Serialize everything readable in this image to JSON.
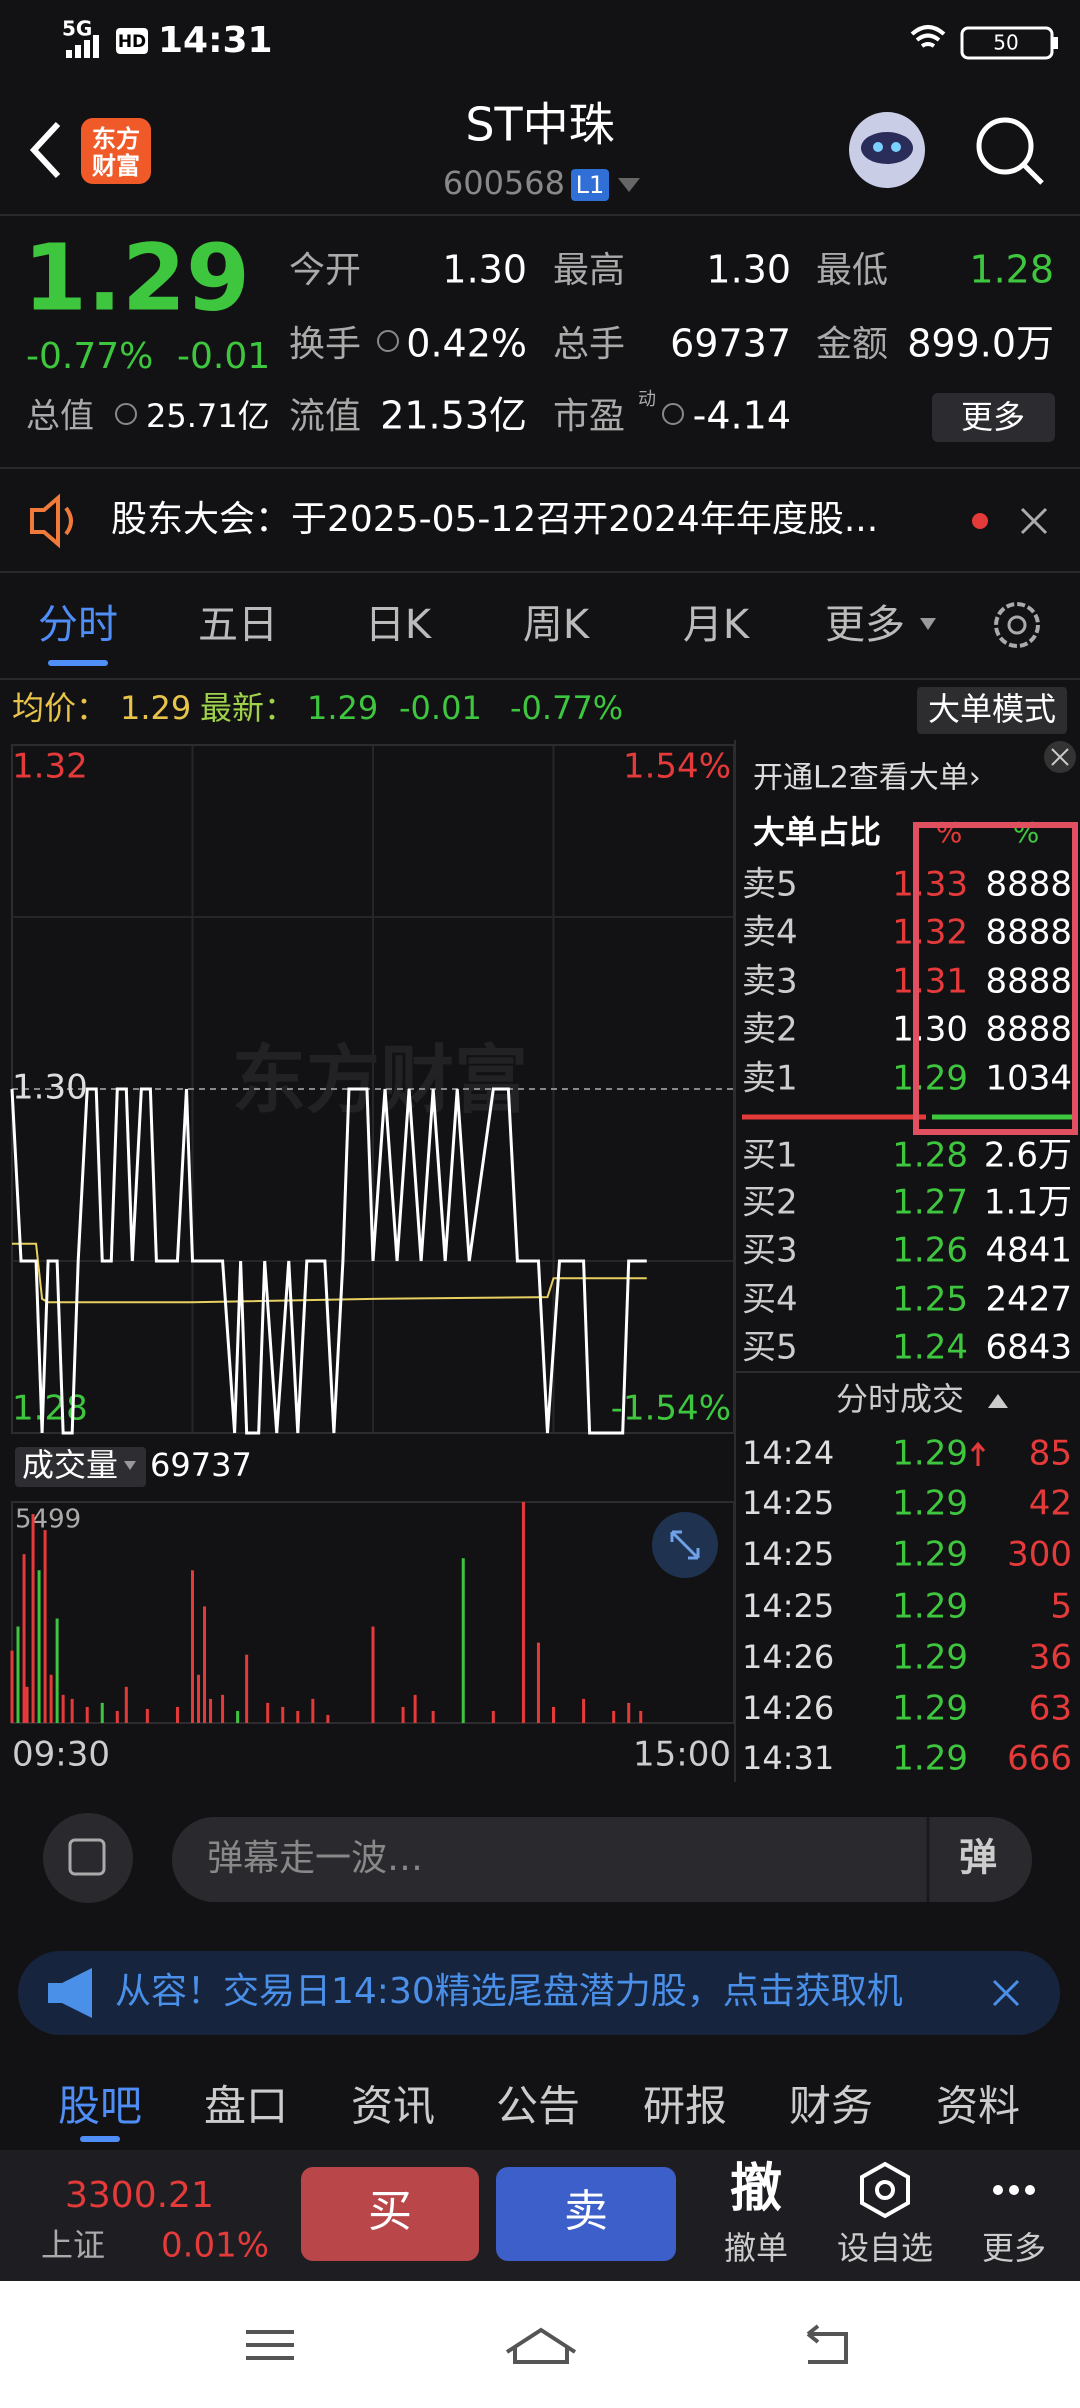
{
  "status_bar": {
    "network": "5G",
    "hd": "HD",
    "time": "14:31",
    "battery": "50"
  },
  "header": {
    "logo": [
      "东方",
      "财富"
    ],
    "title": "ST中珠",
    "code": "600568",
    "level": "L1"
  },
  "quote": {
    "price": "1.29",
    "change_pct": "-0.77%",
    "change": "-0.01",
    "total_value": {
      "label": "总值",
      "value": "25.71亿"
    },
    "fields": [
      {
        "label": "今开",
        "value": "1.30"
      },
      {
        "label": "最高",
        "value": "1.30"
      },
      {
        "label": "最低",
        "value": "1.28"
      },
      {
        "label": "换手",
        "value": "0.42%"
      },
      {
        "label": "总手",
        "value": "69737"
      },
      {
        "label": "金额",
        "value": "899.0万"
      },
      {
        "label": "流值",
        "value": "21.53亿"
      },
      {
        "label": "市盈",
        "value": "-4.14"
      }
    ],
    "pe_mark": "动",
    "more": "更多"
  },
  "notice": {
    "text": "股东大会：于2025-05-12召开2024年年度股..."
  },
  "tabs": {
    "items": [
      "分时",
      "五日",
      "日K",
      "周K",
      "月K",
      "更多"
    ],
    "active": 0
  },
  "summary": {
    "avg_label": "均价：",
    "avg": "1.29",
    "last_label": "最新：",
    "last": "1.29",
    "change": "-0.01",
    "change_pct": "-0.77%",
    "mode_button": "大单模式"
  },
  "intraday": {
    "type": "line",
    "ylim": [
      1.28,
      1.32
    ],
    "yticks": [
      {
        "value": 1.32,
        "label": "1.32"
      },
      {
        "value": 1.3,
        "label": "1.30"
      },
      {
        "value": 1.28,
        "label": "1.28"
      }
    ],
    "pct_labels": [
      "1.54%",
      "-1.54%"
    ],
    "watermark": "东方财富",
    "xlim": [
      0,
      240
    ],
    "x_labels": [
      "09:30",
      "15:00"
    ],
    "minutes": [
      0,
      3,
      8,
      10,
      12,
      15,
      17,
      20,
      22,
      25,
      28,
      30,
      33,
      35,
      38,
      40,
      43,
      46,
      48,
      55,
      58,
      60,
      70,
      74,
      76,
      78,
      82,
      84,
      88,
      92,
      95,
      98,
      104,
      107,
      110,
      112,
      118,
      120,
      124,
      128,
      132,
      136,
      140,
      144,
      148,
      152,
      160,
      165,
      168,
      175,
      178,
      182,
      190,
      192,
      203,
      205,
      211
    ],
    "prices": [
      1.3,
      1.29,
      1.29,
      1.28,
      1.29,
      1.29,
      1.28,
      1.28,
      1.29,
      1.3,
      1.3,
      1.29,
      1.29,
      1.3,
      1.3,
      1.29,
      1.3,
      1.3,
      1.29,
      1.29,
      1.3,
      1.29,
      1.29,
      1.28,
      1.29,
      1.28,
      1.28,
      1.29,
      1.28,
      1.29,
      1.28,
      1.29,
      1.29,
      1.28,
      1.29,
      1.3,
      1.3,
      1.29,
      1.3,
      1.29,
      1.3,
      1.29,
      1.3,
      1.29,
      1.3,
      1.29,
      1.3,
      1.3,
      1.29,
      1.29,
      1.28,
      1.29,
      1.29,
      1.28,
      1.28,
      1.29,
      1.29
    ],
    "avg_minutes": [
      0,
      8,
      10,
      12,
      60,
      120,
      178,
      180,
      211
    ],
    "avg": [
      1.291,
      1.291,
      1.2878,
      1.2876,
      1.2876,
      1.2878,
      1.2879,
      1.289,
      1.289
    ],
    "volume_label": "成交量",
    "volume_total": "69737",
    "vol_ylim": [
      0,
      5499
    ],
    "vol_yticks": [
      5499
    ],
    "vol_minutes": [
      0,
      2,
      4,
      5,
      7,
      9,
      11,
      13,
      15,
      17,
      20,
      25,
      30,
      35,
      38,
      45,
      55,
      60,
      62,
      64,
      66,
      70,
      75,
      78,
      85,
      90,
      95,
      100,
      105,
      120,
      130,
      134,
      140,
      150,
      160,
      170,
      175,
      180,
      190,
      200,
      205,
      209
    ],
    "volumes": [
      1800,
      2400,
      4200,
      900,
      5200,
      3800,
      4800,
      1200,
      2600,
      700,
      600,
      400,
      500,
      300,
      900,
      350,
      400,
      3800,
      1200,
      2900,
      600,
      700,
      300,
      1700,
      500,
      400,
      300,
      600,
      200,
      2400,
      400,
      700,
      300,
      4100,
      300,
      5499,
      2000,
      400,
      600,
      300,
      500,
      300
    ],
    "vol_up": [
      true,
      false,
      true,
      true,
      true,
      false,
      true,
      true,
      false,
      true,
      true,
      true,
      false,
      true,
      true,
      true,
      true,
      true,
      true,
      true,
      true,
      true,
      false,
      true,
      true,
      true,
      true,
      true,
      true,
      true,
      true,
      true,
      true,
      false,
      true,
      true,
      true,
      true,
      true,
      true,
      true,
      true
    ]
  },
  "order_book": {
    "l2_link": "开通L2查看大单›",
    "ratio_label": "大单占比",
    "ratio_headers": [
      "%",
      "%"
    ],
    "asks": [
      {
        "label": "卖5",
        "price": "1.33",
        "volume": "8888"
      },
      {
        "label": "卖4",
        "price": "1.32",
        "volume": "8888"
      },
      {
        "label": "卖3",
        "price": "1.31",
        "volume": "8888"
      },
      {
        "label": "卖2",
        "price": "1.30",
        "volume": "8888"
      },
      {
        "label": "卖1",
        "price": "1.29",
        "volume": "1034"
      }
    ],
    "bids": [
      {
        "label": "买1",
        "price": "1.28",
        "volume": "2.6万"
      },
      {
        "label": "买2",
        "price": "1.27",
        "volume": "1.1万"
      },
      {
        "label": "买3",
        "price": "1.26",
        "volume": "4841"
      },
      {
        "label": "买4",
        "price": "1.25",
        "volume": "2427"
      },
      {
        "label": "买5",
        "price": "1.24",
        "volume": "6843"
      }
    ]
  },
  "trades": {
    "title": "分时成交",
    "rows": [
      {
        "time": "14:24",
        "price": "1.29",
        "volume": "85"
      },
      {
        "time": "14:25",
        "price": "1.29",
        "volume": "42"
      },
      {
        "time": "14:25",
        "price": "1.29",
        "volume": "300"
      },
      {
        "time": "14:25",
        "price": "1.29",
        "volume": "5"
      },
      {
        "time": "14:26",
        "price": "1.29",
        "volume": "36"
      },
      {
        "time": "14:26",
        "price": "1.29",
        "volume": "63"
      },
      {
        "time": "14:31",
        "price": "1.29",
        "volume": "666"
      }
    ]
  },
  "danmu": {
    "placeholder": "弹幕走一波…",
    "button": "弹"
  },
  "banner": {
    "text": "从容！交易日14:30精选尾盘潜力股，点击获取机"
  },
  "bottom_tabs": {
    "items": [
      "股吧",
      "盘口",
      "资讯",
      "公告",
      "研报",
      "财务",
      "资料"
    ],
    "active": 0
  },
  "trade_bar": {
    "index_value": "3300.21",
    "index_name": "上证",
    "index_change": "0.01%",
    "buy": "买",
    "sell": "卖",
    "cancel_icon": "撤",
    "cancel": "撤单",
    "watch": "设自选",
    "more": "更多"
  }
}
